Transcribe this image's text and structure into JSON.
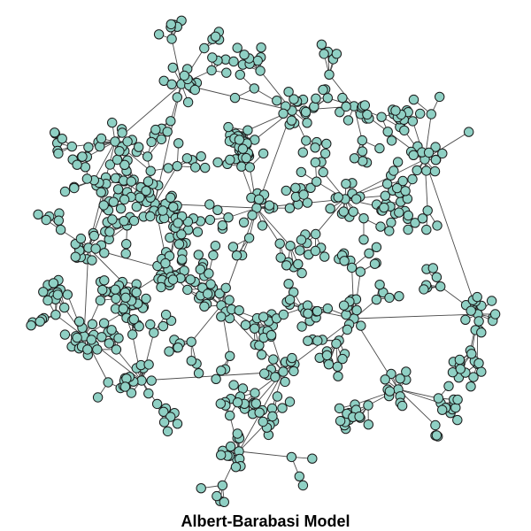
{
  "caption": "Albert-Barabasi Model",
  "colors": {
    "node_fill": "#8fd0c4",
    "node_stroke": "#1a1a1a",
    "edge": "#4a4a4a",
    "background": "#ffffff"
  },
  "graph": {
    "model": "preferential-attachment",
    "hubs": 14
  }
}
